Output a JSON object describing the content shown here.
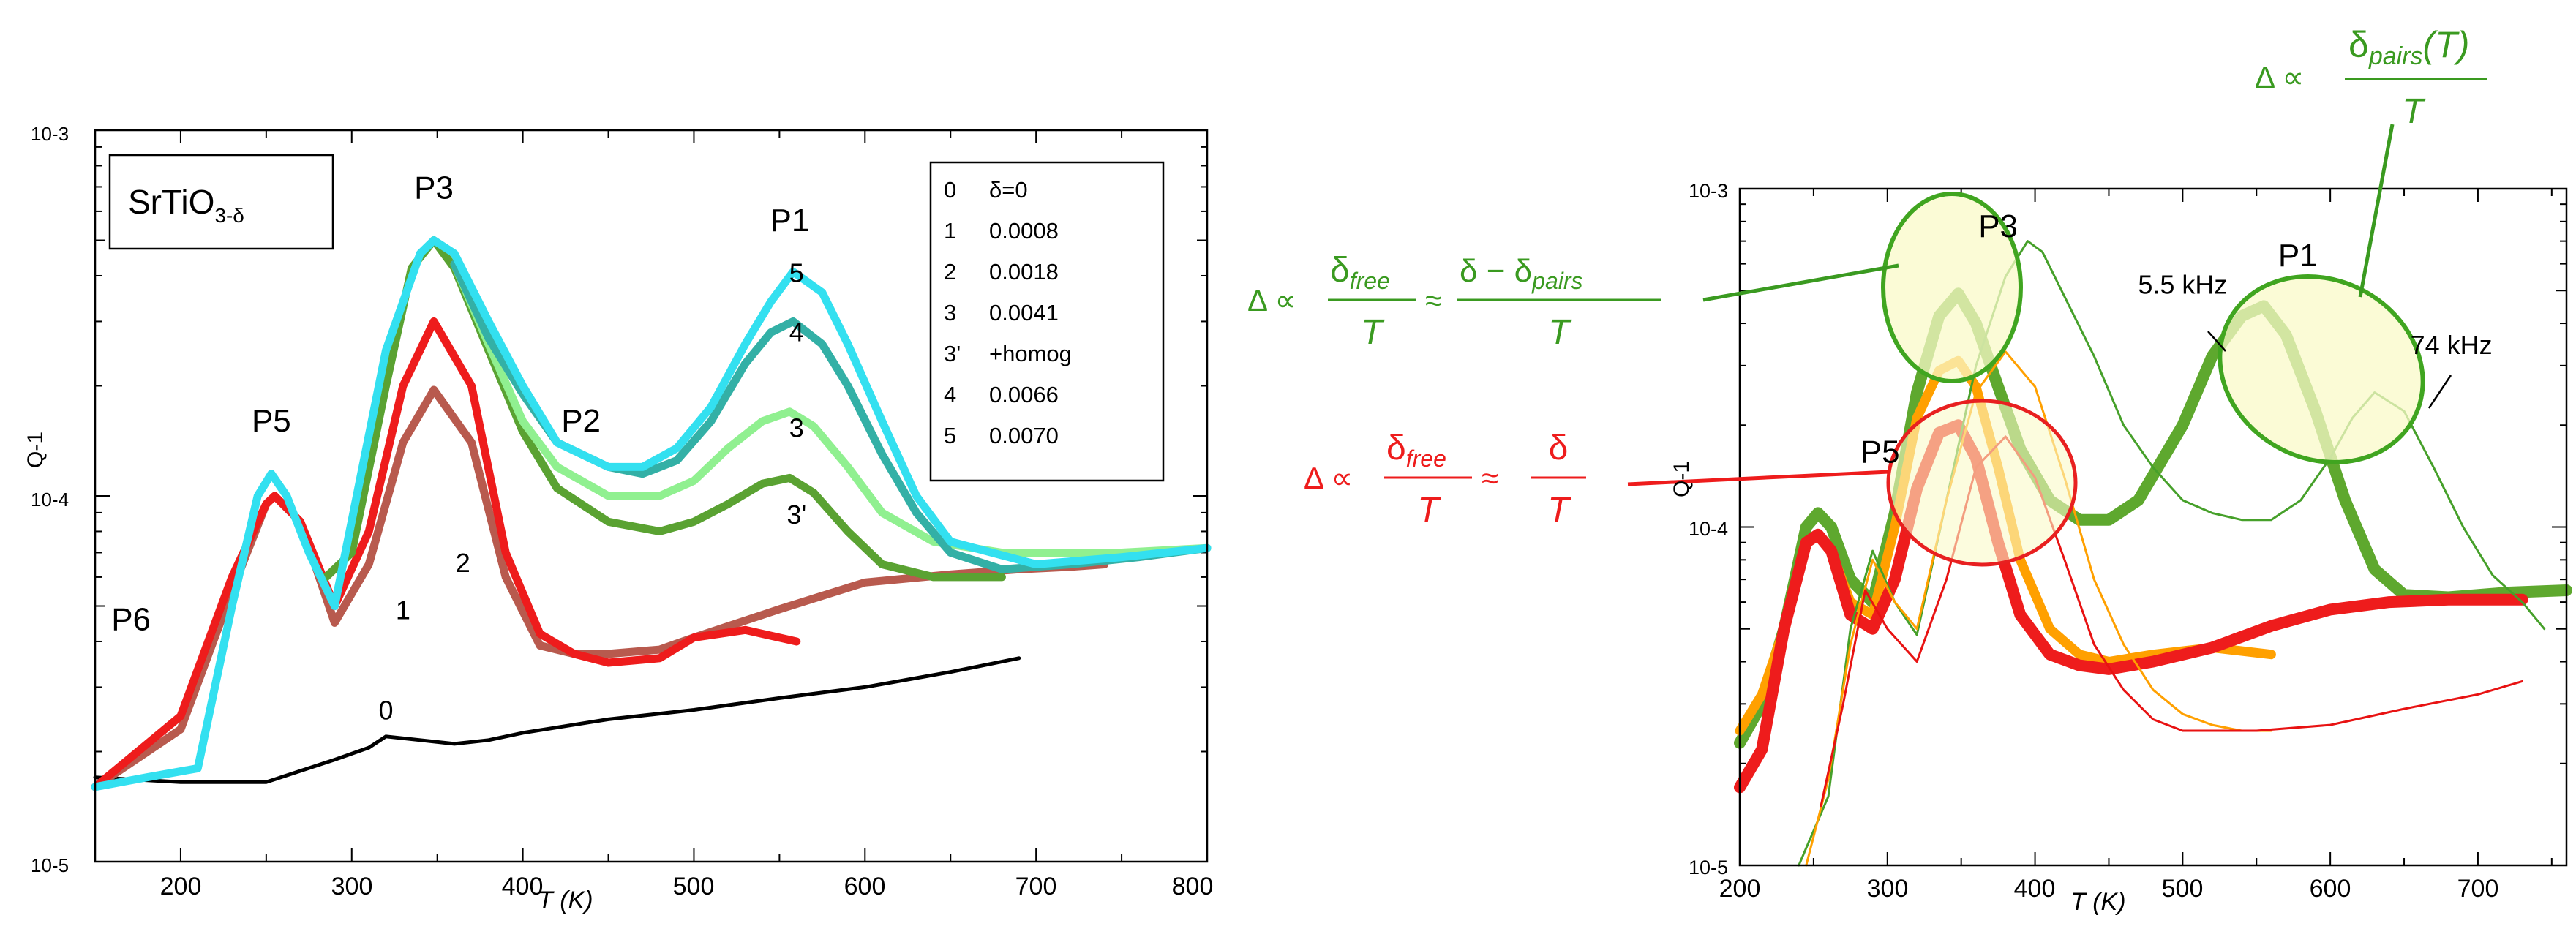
{
  "colors": {
    "c0": "#000000",
    "c1": "#b85a4e",
    "c2": "#ee1c1c",
    "c3": "#5ea82e",
    "c3p": "#5aa232",
    "c4": "#33b0a6",
    "c5": "#33e0f0",
    "c3light": "#90f090",
    "orange": "#ffa000",
    "green_thin": "#46a02a",
    "red_thin": "#e81212",
    "ellipse_fill": "#fafac8",
    "ellipse_green": "#40a520",
    "ellipse_red": "#e82020",
    "formula_green": "#3a9a20",
    "formula_red": "#ee1c1c"
  },
  "chart_data": [
    {
      "type": "line",
      "yscale": "log",
      "xlim": [
        150,
        800
      ],
      "ylim": [
        1e-05,
        0.001
      ],
      "xlabel": "T (K)",
      "ylabel": "Q-1",
      "x_ticks": [
        "200",
        "300",
        "400",
        "500",
        "600",
        "700",
        "800"
      ],
      "y_ticks": [
        "10-5",
        "10-4",
        "10-3"
      ],
      "sample_label": {
        "main": "SrTiO",
        "sub": "3-δ"
      },
      "legend": [
        {
          "key": "0",
          "value": "δ=0"
        },
        {
          "key": "1",
          "value": "0.0008"
        },
        {
          "key": "2",
          "value": "0.0018"
        },
        {
          "key": "3",
          "value": "0.0041"
        },
        {
          "key": "3'",
          "value": "+homog"
        },
        {
          "key": "4",
          "value": "0.0066"
        },
        {
          "key": "5",
          "value": "0.0070"
        }
      ],
      "peak_labels": [
        {
          "text": "P6",
          "x": 171,
          "y": 4.3e-05
        },
        {
          "text": "P5",
          "x": 253,
          "y": 0.00015
        },
        {
          "text": "P3",
          "x": 348,
          "y": 0.00065
        },
        {
          "text": "P2",
          "x": 434,
          "y": 0.00015
        },
        {
          "text": "P1",
          "x": 556,
          "y": 0.00053
        }
      ],
      "curve_labels": [
        {
          "text": "5",
          "x": 560,
          "y": 0.000385
        },
        {
          "text": "4",
          "x": 560,
          "y": 0.000265
        },
        {
          "text": "3",
          "x": 560,
          "y": 0.000145
        },
        {
          "text": "3'",
          "x": 560,
          "y": 8.4e-05
        },
        {
          "text": "2",
          "x": 365,
          "y": 6.2e-05
        },
        {
          "text": "1",
          "x": 330,
          "y": 4.6e-05
        },
        {
          "text": "0",
          "x": 320,
          "y": 2.45e-05
        }
      ],
      "series": [
        {
          "name": "0",
          "color_key": "c0",
          "width": 5,
          "x": [
            150,
            200,
            250,
            290,
            310,
            320,
            340,
            360,
            380,
            400,
            450,
            500,
            550,
            600,
            650,
            690
          ],
          "y": [
            1.7e-05,
            1.65e-05,
            1.65e-05,
            1.9e-05,
            2.05e-05,
            2.2e-05,
            2.15e-05,
            2.1e-05,
            2.15e-05,
            2.25e-05,
            2.45e-05,
            2.6e-05,
            2.8e-05,
            3e-05,
            3.3e-05,
            3.6e-05
          ]
        },
        {
          "name": "1",
          "color_key": "c1",
          "width": 11,
          "x": [
            150,
            200,
            230,
            250,
            255,
            270,
            290,
            310,
            330,
            348,
            370,
            390,
            410,
            430,
            450,
            480,
            500,
            550,
            600,
            650,
            690,
            720,
            740
          ],
          "y": [
            1.6e-05,
            2.3e-05,
            5.5e-05,
            9.5e-05,
            0.0001,
            8.5e-05,
            4.5e-05,
            6.5e-05,
            0.00014,
            0.000195,
            0.00014,
            6e-05,
            3.9e-05,
            3.7e-05,
            3.7e-05,
            3.8e-05,
            4.1e-05,
            4.9e-05,
            5.8e-05,
            6.1e-05,
            6.3e-05,
            6.4e-05,
            6.5e-05
          ]
        },
        {
          "name": "2",
          "color_key": "c2",
          "width": 11,
          "x": [
            150,
            200,
            230,
            250,
            255,
            270,
            290,
            310,
            330,
            348,
            370,
            390,
            410,
            430,
            450,
            480,
            500,
            530,
            560
          ],
          "y": [
            1.6e-05,
            2.5e-05,
            6e-05,
            9.5e-05,
            0.0001,
            8.5e-05,
            5e-05,
            8e-05,
            0.0002,
            0.0003,
            0.0002,
            7e-05,
            4.2e-05,
            3.7e-05,
            3.5e-05,
            3.6e-05,
            4.1e-05,
            4.3e-05,
            4e-05
          ]
        },
        {
          "name": "3'",
          "color_key": "c3p",
          "width": 11,
          "x": [
            285,
            300,
            320,
            335,
            348,
            360,
            380,
            400,
            420,
            450,
            480,
            500,
            520,
            540,
            556,
            570,
            590,
            610,
            640,
            680
          ],
          "y": [
            6e-05,
            7e-05,
            0.0002,
            0.00042,
            0.0005,
            0.00042,
            0.00025,
            0.00015,
            0.000105,
            8.5e-05,
            8e-05,
            8.5e-05,
            9.5e-05,
            0.000108,
            0.000112,
            0.000102,
            8e-05,
            6.5e-05,
            6e-05,
            6e-05
          ]
        },
        {
          "name": "3",
          "color_key": "c3light",
          "width": 11,
          "x": [
            360,
            380,
            400,
            420,
            450,
            480,
            500,
            520,
            540,
            556,
            570,
            590,
            610,
            640,
            680,
            720,
            750,
            800
          ],
          "y": [
            0.00043,
            0.00026,
            0.00016,
            0.00012,
            0.0001,
            0.0001,
            0.00011,
            0.000135,
            0.00016,
            0.00017,
            0.000155,
            0.00012,
            9e-05,
            7.5e-05,
            7e-05,
            7e-05,
            7e-05,
            7.2e-05
          ]
        },
        {
          "name": "4",
          "color_key": "c4",
          "width": 11,
          "x": [
            360,
            380,
            400,
            420,
            450,
            470,
            490,
            510,
            530,
            545,
            558,
            575,
            590,
            610,
            630,
            650,
            680,
            720,
            760,
            800
          ],
          "y": [
            0.00043,
            0.00027,
            0.00019,
            0.00014,
            0.00012,
            0.000115,
            0.000125,
            0.00016,
            0.00023,
            0.00028,
            0.0003,
            0.00026,
            0.0002,
            0.00013,
            9e-05,
            7e-05,
            6.3e-05,
            6.5e-05,
            6.8e-05,
            7.2e-05
          ]
        },
        {
          "name": "5",
          "color_key": "c5",
          "width": 11,
          "x": [
            150,
            180,
            210,
            230,
            245,
            253,
            262,
            275,
            290,
            320,
            340,
            348,
            360,
            380,
            400,
            420,
            450,
            470,
            490,
            510,
            530,
            545,
            558,
            575,
            590,
            610,
            630,
            650,
            700,
            750,
            800
          ],
          "y": [
            1.6e-05,
            1.7e-05,
            1.8e-05,
            5e-05,
            0.0001,
            0.000115,
            0.0001,
            7e-05,
            5e-05,
            0.00025,
            0.00046,
            0.0005,
            0.00046,
            0.0003,
            0.0002,
            0.00014,
            0.00012,
            0.00012,
            0.000135,
            0.000175,
            0.00026,
            0.00034,
            0.00041,
            0.00036,
            0.00026,
            0.00016,
            0.0001,
            7.5e-05,
            6.5e-05,
            6.8e-05,
            7.2e-05
          ]
        }
      ]
    },
    {
      "type": "line",
      "yscale": "log",
      "xlim": [
        200,
        760
      ],
      "ylim": [
        1e-05,
        0.001
      ],
      "xlabel": "T (K)",
      "ylabel": "Q-1",
      "x_ticks": [
        "200",
        "300",
        "400",
        "500",
        "600",
        "700"
      ],
      "y_ticks": [
        "10-5",
        "10-4",
        "10-3"
      ],
      "peak_labels": [
        {
          "text": "P3",
          "x": 375,
          "y": 0.00072
        },
        {
          "text": "P1",
          "x": 578,
          "y": 0.00059
        },
        {
          "text": "P5",
          "x": 295,
          "y": 0.000155
        }
      ],
      "freq_labels": [
        {
          "text": "5.5 kHz",
          "x": 500,
          "y": 0.00049
        },
        {
          "text": "74 kHz",
          "x": 682,
          "y": 0.000325
        }
      ],
      "series": [
        {
          "name": "green thick",
          "color_key": "c3",
          "width": 16,
          "x": [
            200,
            215,
            230,
            245,
            253,
            262,
            275,
            290,
            305,
            320,
            335,
            348,
            360,
            375,
            390,
            410,
            430,
            450,
            470,
            500,
            520,
            540,
            555,
            570,
            590,
            610,
            630,
            650,
            680,
            720,
            760
          ],
          "y": [
            2.3e-05,
            3e-05,
            5e-05,
            0.0001,
            0.00011,
            0.0001,
            7e-05,
            6e-05,
            0.00011,
            0.00025,
            0.00042,
            0.00049,
            0.0004,
            0.00026,
            0.00017,
            0.00012,
            0.000105,
            0.000105,
            0.00012,
            0.0002,
            0.00032,
            0.00042,
            0.00045,
            0.00037,
            0.00022,
            0.00012,
            7.5e-05,
            6.3e-05,
            6.2e-05,
            6.4e-05,
            6.5e-05
          ]
        },
        {
          "name": "orange thick",
          "color_key": "orange",
          "width": 13,
          "x": [
            200,
            215,
            230,
            245,
            253,
            262,
            275,
            290,
            305,
            320,
            335,
            348,
            360,
            375,
            390,
            410,
            430,
            450,
            480,
            520,
            560
          ],
          "y": [
            2.5e-05,
            3.2e-05,
            5e-05,
            9e-05,
            9.5e-05,
            8.5e-05,
            6e-05,
            5.5e-05,
            0.0001,
            0.00021,
            0.00029,
            0.00031,
            0.00026,
            0.00015,
            8e-05,
            5e-05,
            4.2e-05,
            4e-05,
            4.2e-05,
            4.4e-05,
            4.2e-05
          ]
        },
        {
          "name": "red thick",
          "color_key": "c2",
          "width": 16,
          "x": [
            200,
            215,
            230,
            245,
            253,
            262,
            275,
            290,
            305,
            320,
            335,
            348,
            360,
            375,
            390,
            410,
            430,
            450,
            480,
            520,
            560,
            600,
            640,
            680,
            730
          ],
          "y": [
            1.7e-05,
            2.2e-05,
            5e-05,
            9e-05,
            9.5e-05,
            8.5e-05,
            5.5e-05,
            5e-05,
            7e-05,
            0.00013,
            0.00019,
            0.0002,
            0.00016,
            9e-05,
            5.5e-05,
            4.2e-05,
            3.9e-05,
            3.8e-05,
            4e-05,
            4.4e-05,
            5.1e-05,
            5.7e-05,
            6e-05,
            6.1e-05,
            6.1e-05
          ]
        },
        {
          "name": "green thin",
          "color_key": "green_thin",
          "width": 3,
          "x": [
            240,
            260,
            275,
            290,
            305,
            320,
            340,
            360,
            380,
            395,
            405,
            420,
            440,
            460,
            480,
            500,
            520,
            540,
            560,
            580,
            600,
            615,
            630,
            650,
            670,
            690,
            710,
            730,
            745
          ],
          "y": [
            1e-05,
            1.6e-05,
            5e-05,
            8.5e-05,
            6e-05,
            4.8e-05,
            0.00012,
            0.0003,
            0.00055,
            0.0007,
            0.00065,
            0.00048,
            0.00032,
            0.0002,
            0.00015,
            0.00012,
            0.00011,
            0.000105,
            0.000105,
            0.00012,
            0.00016,
            0.00021,
            0.00025,
            0.00022,
            0.00015,
            0.0001,
            7.2e-05,
            6e-05,
            5e-05
          ]
        },
        {
          "name": "orange thin",
          "color_key": "orange",
          "width": 3,
          "x": [
            245,
            260,
            275,
            290,
            305,
            320,
            340,
            360,
            380,
            400,
            420,
            440,
            460,
            480,
            500,
            520,
            540,
            560
          ],
          "y": [
            1e-05,
            1.8e-05,
            4.5e-05,
            8e-05,
            6e-05,
            5e-05,
            0.00012,
            0.00025,
            0.00033,
            0.00026,
            0.00014,
            7e-05,
            4.5e-05,
            3.3e-05,
            2.8e-05,
            2.6e-05,
            2.5e-05,
            2.5e-05
          ]
        },
        {
          "name": "red thin",
          "color_key": "red_thin",
          "width": 3,
          "x": [
            255,
            270,
            285,
            300,
            320,
            340,
            360,
            380,
            400,
            420,
            440,
            460,
            480,
            500,
            550,
            600,
            650,
            700,
            730
          ],
          "y": [
            1.5e-05,
            3e-05,
            6.5e-05,
            5e-05,
            4e-05,
            7e-05,
            0.00015,
            0.000185,
            0.00014,
            8e-05,
            4.5e-05,
            3.3e-05,
            2.7e-05,
            2.5e-05,
            2.5e-05,
            2.6e-05,
            2.9e-05,
            3.2e-05,
            3.5e-05
          ]
        }
      ]
    }
  ],
  "formulas": {
    "pairs": {
      "lhs": "Δ ∝",
      "numerator": "δ",
      "num_sub": "pairs",
      "num_tail": "(T)",
      "denominator": "T"
    },
    "free_pairs": {
      "lhs": "Δ ∝",
      "num1": "δ",
      "num1_sub": "free",
      "approx": "≈",
      "num2": "δ − δ",
      "num2_sub": "pairs",
      "den1": "T",
      "den2": "T"
    },
    "free": {
      "lhs": "Δ ∝",
      "num1": "δ",
      "num1_sub": "free",
      "approx": "≈",
      "num2": "δ",
      "den1": "T",
      "den2": "T"
    }
  }
}
